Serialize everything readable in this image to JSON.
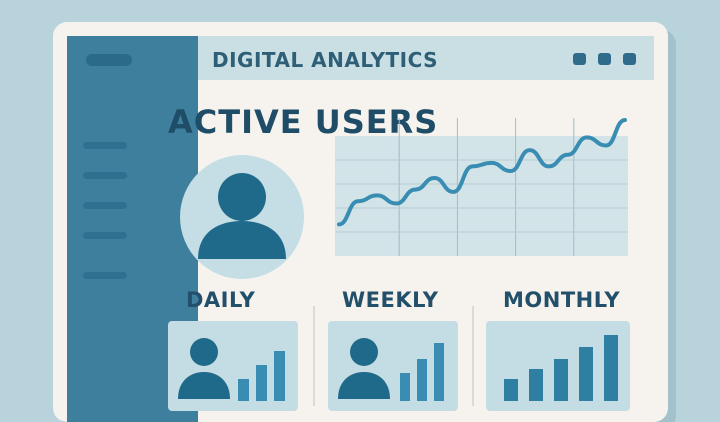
{
  "window": {
    "title": "DIGITAL ANALYTICS"
  },
  "main": {
    "heading": "ACTIVE USERS",
    "periods": [
      {
        "label": "DAILY"
      },
      {
        "label": "WEEKLY"
      },
      {
        "label": "MONTHLY"
      }
    ]
  },
  "colors": {
    "background": "#b9d3dc",
    "sidebar": "#3f7f9e",
    "accent": "#2f6c8c",
    "chart_line": "#3a8db2",
    "text": "#1f4d68"
  },
  "chart_data": {
    "type": "line",
    "series": [
      {
        "values": [
          0.1,
          0.3,
          0.35,
          0.28,
          0.4,
          0.5,
          0.38,
          0.6,
          0.63,
          0.56,
          0.74,
          0.6,
          0.7,
          0.85,
          0.78,
          1.0
        ]
      }
    ],
    "grid": true
  },
  "icons": [
    "user-icon",
    "bar-chart-icon"
  ]
}
